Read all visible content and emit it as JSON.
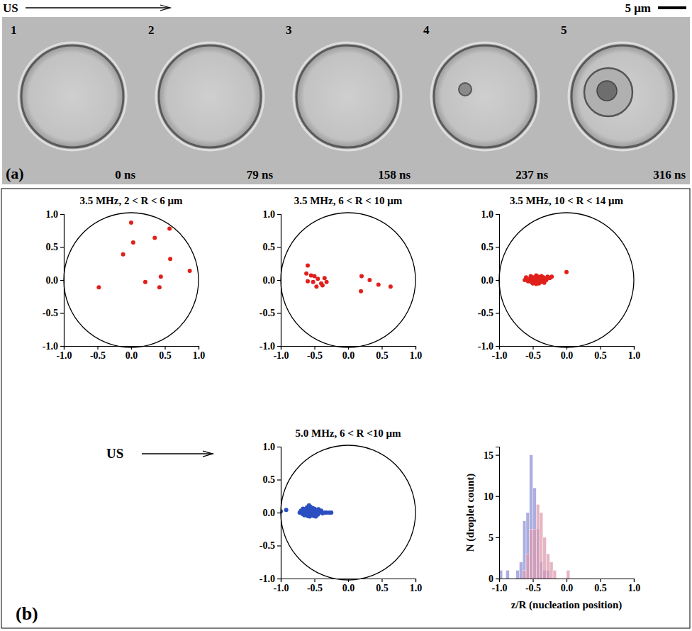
{
  "figure": {
    "panel_a": {
      "label": "(a)",
      "direction_label": "US",
      "scale_bar_label": "5 μm",
      "frames": [
        {
          "number": "1",
          "time": "0 ns"
        },
        {
          "number": "2",
          "time": "79 ns"
        },
        {
          "number": "3",
          "time": "158 ns"
        },
        {
          "number": "4",
          "time": "237 ns"
        },
        {
          "number": "5",
          "time": "316 ns"
        }
      ]
    },
    "panel_b": {
      "label": "(b)",
      "direction_label": "US"
    }
  },
  "chart_data": [
    {
      "type": "scatter",
      "title": "3.5 MHz, 2 < R < 6 μm",
      "color": "#e0201b",
      "marker": "circle",
      "x": [
        0.0,
        0.57,
        0.35,
        0.03,
        -0.12,
        0.58,
        0.87,
        0.44,
        0.21,
        0.42,
        -0.48
      ],
      "values": [
        0.87,
        0.78,
        0.64,
        0.57,
        0.39,
        0.32,
        0.14,
        0.05,
        -0.03,
        -0.11,
        -0.11
      ],
      "xlim": [
        -1,
        1
      ],
      "ylim": [
        -1,
        1
      ],
      "xticks": [
        {
          "value": -1,
          "label": "-1.0"
        },
        {
          "value": -0.5,
          "label": "-0.5"
        },
        {
          "value": 0,
          "label": "0.0"
        },
        {
          "value": 0.5,
          "label": "0.5"
        },
        {
          "value": 1,
          "label": "1.0"
        }
      ],
      "yticks": [
        {
          "value": -1,
          "label": "-1.0"
        },
        {
          "value": -0.5,
          "label": "-0.5"
        },
        {
          "value": 0,
          "label": "0.0"
        },
        {
          "value": 0.5,
          "label": "0.5"
        },
        {
          "value": 1,
          "label": "1.0"
        }
      ]
    },
    {
      "type": "scatter",
      "title": "3.5 MHz, 6 < R < 10 μm",
      "color": "#e0201b",
      "marker": "circle",
      "x": [
        -0.6,
        -0.62,
        -0.55,
        -0.5,
        -0.45,
        -0.35,
        -0.6,
        -0.52,
        -0.4,
        -0.32,
        -0.47,
        -0.38,
        0.2,
        0.32,
        0.45,
        0.63,
        0.19
      ],
      "values": [
        0.22,
        0.1,
        0.07,
        0.06,
        0.02,
        0.03,
        -0.02,
        -0.03,
        -0.05,
        -0.03,
        -0.1,
        -0.08,
        0.06,
        0.0,
        -0.07,
        -0.1,
        -0.17
      ],
      "xlim": [
        -1,
        1
      ],
      "ylim": [
        -1,
        1
      ],
      "xticks": [
        {
          "value": -1,
          "label": "-1.0"
        },
        {
          "value": -0.5,
          "label": "-0.5"
        },
        {
          "value": 0,
          "label": "0.0"
        },
        {
          "value": 0.5,
          "label": "0.5"
        },
        {
          "value": 1,
          "label": "1.0"
        }
      ],
      "yticks": [
        {
          "value": -1,
          "label": "-1.0"
        },
        {
          "value": -0.5,
          "label": "-0.5"
        },
        {
          "value": 0,
          "label": "0.0"
        },
        {
          "value": 0.5,
          "label": "0.5"
        },
        {
          "value": 1,
          "label": "1.0"
        }
      ]
    },
    {
      "type": "scatter",
      "title": "3.5 MHz, 10 < R < 14 μm",
      "color": "#e0201b",
      "marker": "circle",
      "x": [
        -0.62,
        -0.6,
        -0.57,
        -0.55,
        -0.53,
        -0.52,
        -0.5,
        -0.49,
        -0.48,
        -0.47,
        -0.46,
        -0.45,
        -0.44,
        -0.43,
        -0.42,
        -0.41,
        -0.4,
        -0.39,
        -0.38,
        -0.37,
        -0.36,
        -0.35,
        -0.34,
        -0.33,
        -0.31,
        -0.3,
        -0.28,
        -0.25,
        -0.22,
        -0.45,
        -0.5,
        -0.4,
        0.0
      ],
      "values": [
        0.0,
        0.04,
        -0.02,
        0.02,
        0.06,
        -0.03,
        0.01,
        0.04,
        -0.04,
        0.03,
        0.0,
        0.07,
        -0.02,
        0.02,
        0.05,
        -0.05,
        0.0,
        0.03,
        -0.03,
        0.06,
        0.01,
        -0.01,
        0.04,
        -0.04,
        0.02,
        0.0,
        0.05,
        0.03,
        0.05,
        -0.06,
        -0.05,
        0.02,
        0.12
      ],
      "xlim": [
        -1,
        1
      ],
      "ylim": [
        -1,
        1
      ],
      "xticks": [
        {
          "value": -1,
          "label": "-1.0"
        },
        {
          "value": -0.5,
          "label": "-0.5"
        },
        {
          "value": 0,
          "label": "0.0"
        },
        {
          "value": 0.5,
          "label": "0.5"
        },
        {
          "value": 1,
          "label": "1.0"
        }
      ],
      "yticks": [
        {
          "value": -1,
          "label": "-1.0"
        },
        {
          "value": -0.5,
          "label": "-0.5"
        },
        {
          "value": 0,
          "label": "0.0"
        },
        {
          "value": 0.5,
          "label": "0.5"
        },
        {
          "value": 1,
          "label": "1.0"
        }
      ]
    },
    {
      "type": "scatter",
      "title": "5.0 MHz, 6 < R <10 μm",
      "color": "#2a4fc0",
      "marker": "circle",
      "x": [
        -1.0,
        -0.92,
        -0.72,
        -0.7,
        -0.68,
        -0.67,
        -0.66,
        -0.65,
        -0.64,
        -0.63,
        -0.62,
        -0.61,
        -0.6,
        -0.6,
        -0.59,
        -0.58,
        -0.58,
        -0.57,
        -0.57,
        -0.56,
        -0.56,
        -0.55,
        -0.55,
        -0.55,
        -0.54,
        -0.54,
        -0.53,
        -0.53,
        -0.52,
        -0.52,
        -0.51,
        -0.51,
        -0.5,
        -0.5,
        -0.49,
        -0.48,
        -0.48,
        -0.47,
        -0.46,
        -0.45,
        -0.44,
        -0.43,
        -0.42,
        -0.4,
        -0.38,
        -0.35,
        -0.32,
        -0.28,
        -0.25,
        -0.58
      ],
      "values": [
        0.02,
        0.04,
        0.0,
        0.03,
        -0.02,
        0.06,
        0.01,
        -0.04,
        0.05,
        0.02,
        -0.01,
        0.08,
        0.03,
        -0.05,
        0.0,
        0.06,
        -0.02,
        0.04,
        -0.06,
        0.01,
        0.09,
        0.02,
        -0.03,
        0.05,
        0.0,
        -0.04,
        0.07,
        0.02,
        -0.01,
        0.04,
        -0.05,
        0.01,
        0.06,
        -0.02,
        0.03,
        0.0,
        -0.06,
        0.04,
        0.01,
        -0.03,
        0.05,
        0.0,
        0.02,
        0.03,
        -0.01,
        0.0,
        0.0,
        0.0,
        0.0,
        0.11
      ],
      "xlim": [
        -1,
        1
      ],
      "ylim": [
        -1,
        1
      ],
      "xticks": [
        {
          "value": -1,
          "label": "-1.0"
        },
        {
          "value": -0.5,
          "label": "-0.5"
        },
        {
          "value": 0,
          "label": "0.0"
        },
        {
          "value": 0.5,
          "label": "0.5"
        },
        {
          "value": 1,
          "label": "1.0"
        }
      ],
      "yticks": [
        {
          "value": -1,
          "label": "-1.0"
        },
        {
          "value": -0.5,
          "label": "-0.5"
        },
        {
          "value": 0,
          "label": "0.0"
        },
        {
          "value": 0.5,
          "label": "0.5"
        },
        {
          "value": 1,
          "label": "1.0"
        }
      ]
    },
    {
      "type": "histogram",
      "x_label": "z/R (nucleation position)",
      "y_label": "N (droplet count)",
      "bins": [
        -1.0,
        -0.95,
        -0.9,
        -0.85,
        -0.8,
        -0.75,
        -0.7,
        -0.65,
        -0.6,
        -0.55,
        -0.5,
        -0.45,
        -0.4,
        -0.35,
        -0.3,
        -0.25,
        -0.2,
        -0.15,
        -0.1,
        -0.05,
        0.0,
        0.05
      ],
      "series": [
        {
          "color": "#8c8fd6",
          "values": [
            1,
            0,
            1,
            0,
            0,
            1,
            2,
            7,
            8,
            15,
            11,
            6,
            2,
            1,
            1,
            0,
            0,
            0,
            0,
            0,
            0
          ]
        },
        {
          "color": "#dc98ac",
          "values": [
            0,
            0,
            0,
            0,
            0,
            0,
            0,
            1,
            3,
            6,
            6,
            9,
            8,
            5,
            3,
            2,
            1,
            0,
            0,
            0,
            1
          ]
        }
      ],
      "xlim": [
        -1,
        1
      ],
      "ylim": [
        0,
        16
      ],
      "xticks": [
        {
          "value": -1,
          "label": "-1.0"
        },
        {
          "value": -0.5,
          "label": "-0.5"
        },
        {
          "value": 0,
          "label": "0.0"
        },
        {
          "value": 0.5,
          "label": "0.5"
        },
        {
          "value": 1,
          "label": "1.0"
        }
      ],
      "yticks": [
        0,
        5,
        10,
        15
      ]
    }
  ]
}
